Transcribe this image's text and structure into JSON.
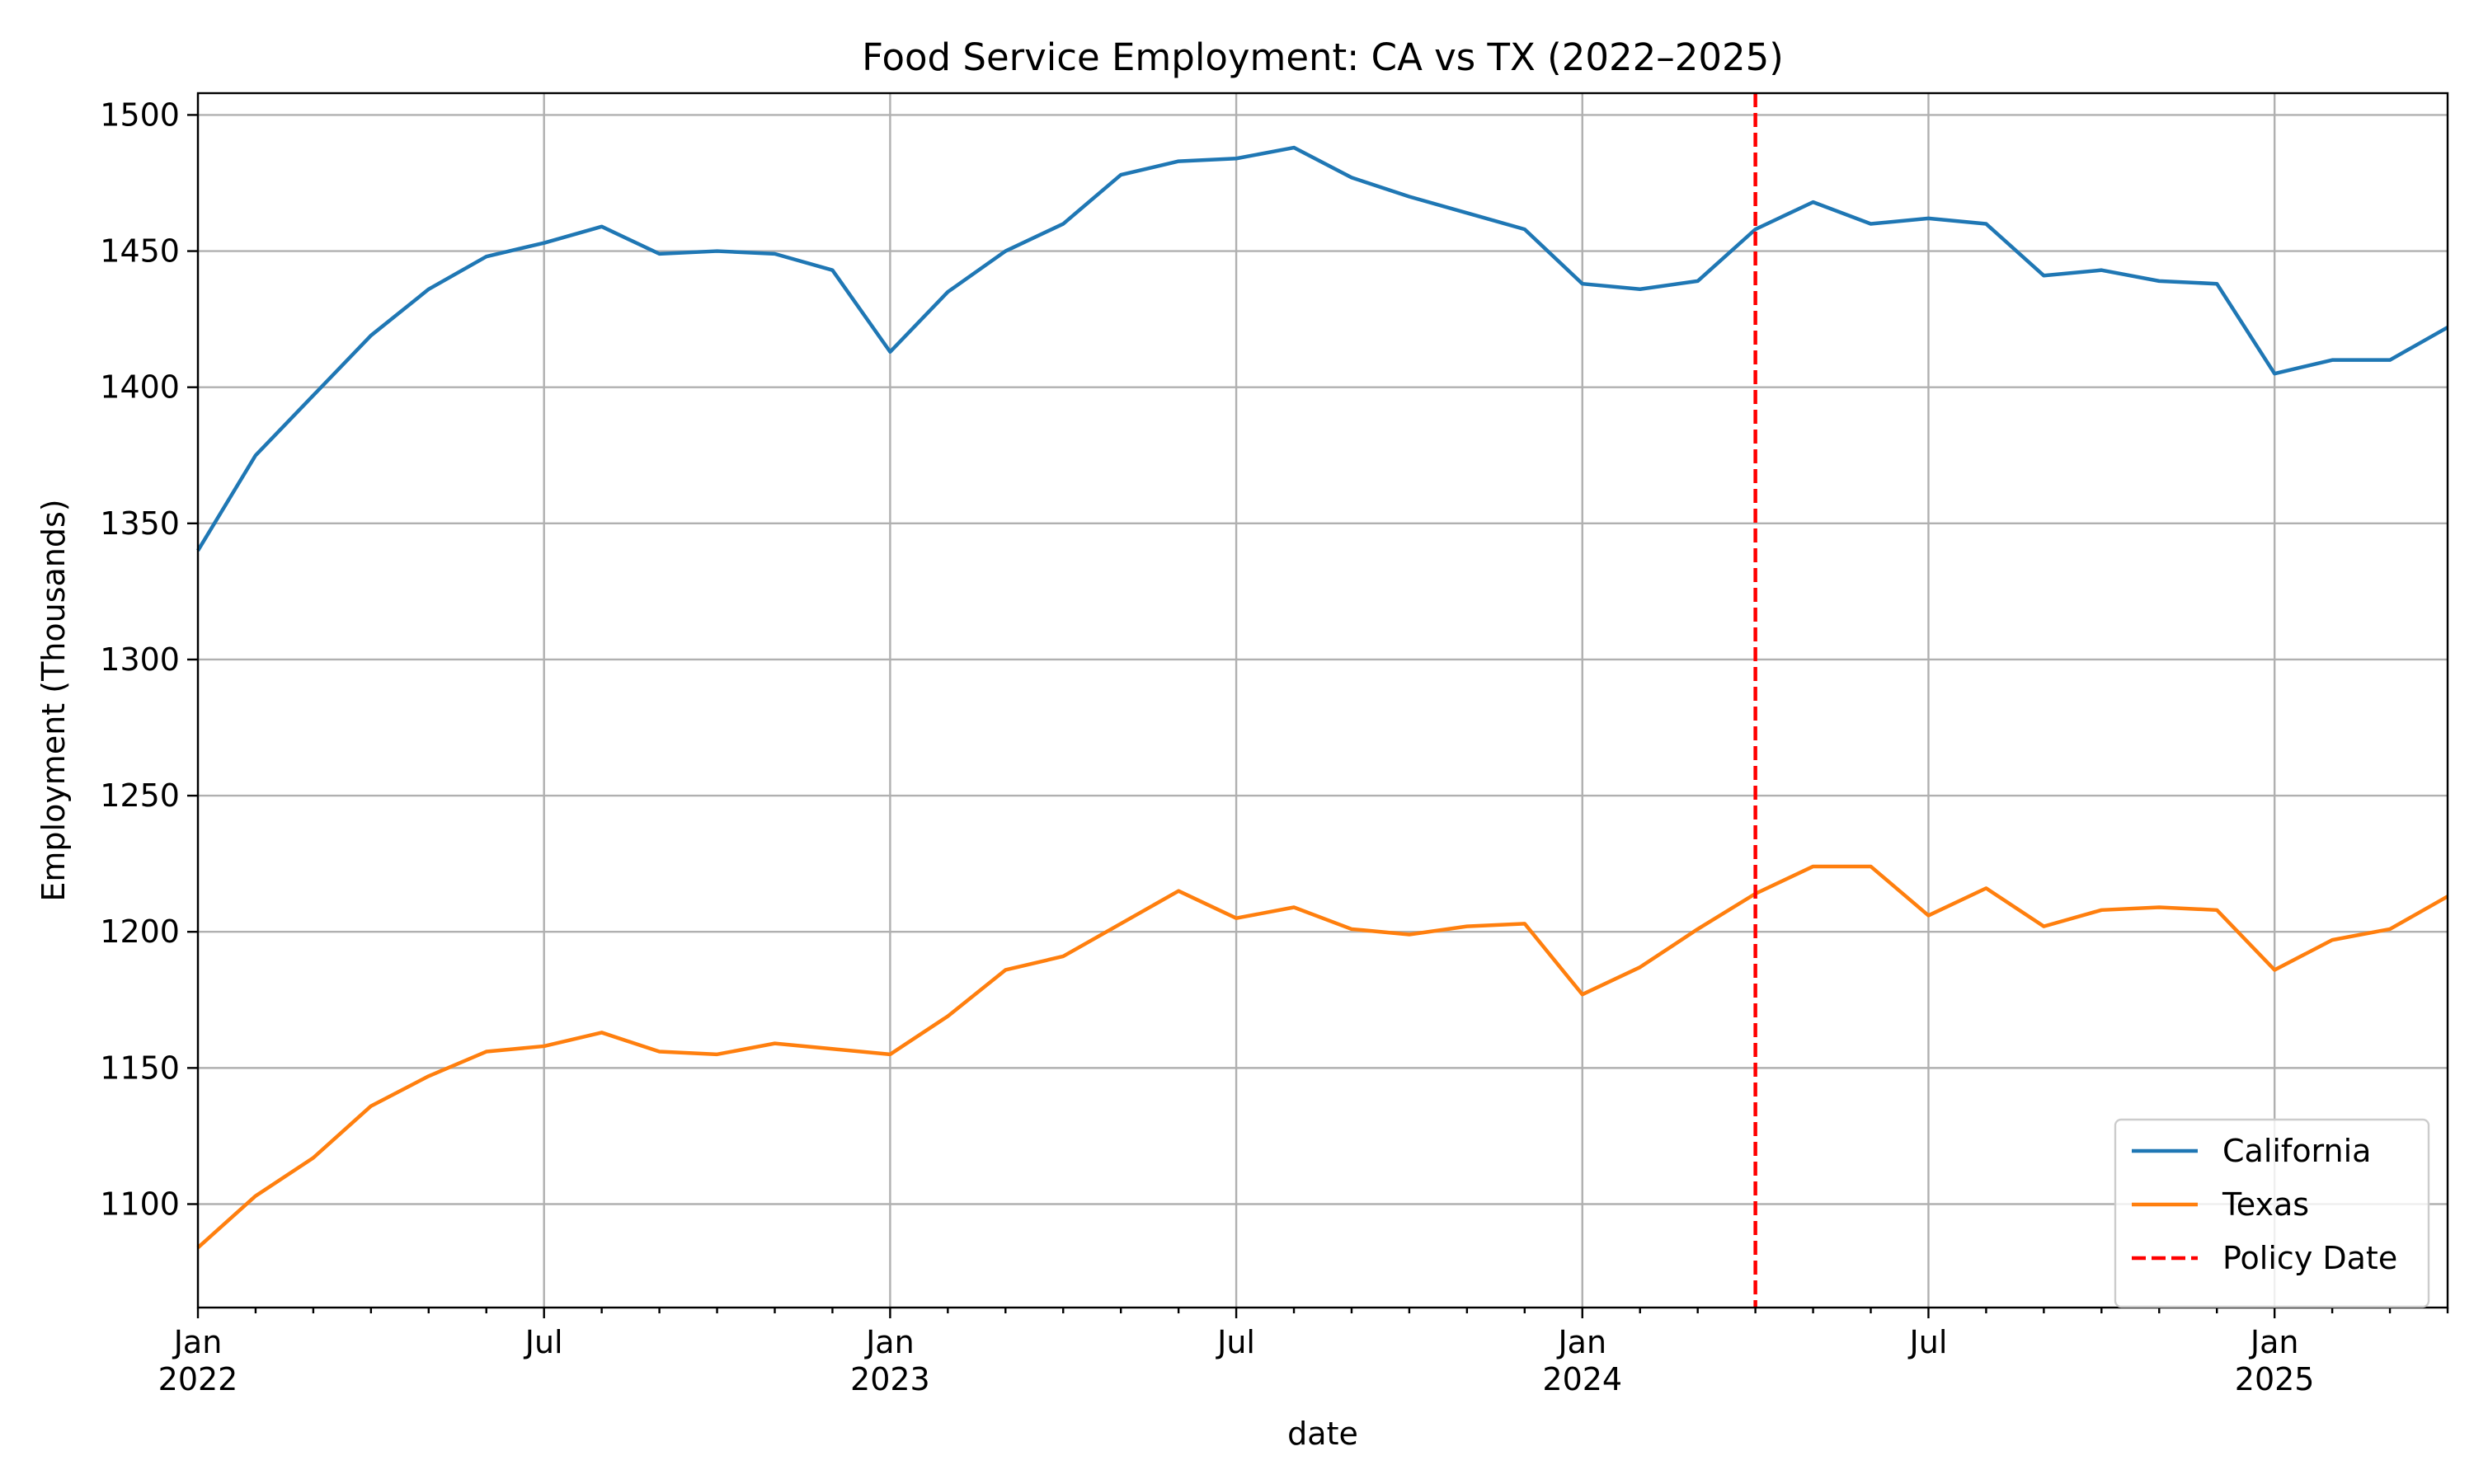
{
  "chart_data": {
    "type": "line",
    "title": "Food Service Employment: CA vs TX (2022–2025)",
    "xlabel": "date",
    "ylabel": "Employment (Thousands)",
    "x": [
      "2022-01",
      "2022-02",
      "2022-03",
      "2022-04",
      "2022-05",
      "2022-06",
      "2022-07",
      "2022-08",
      "2022-09",
      "2022-10",
      "2022-11",
      "2022-12",
      "2023-01",
      "2023-02",
      "2023-03",
      "2023-04",
      "2023-05",
      "2023-06",
      "2023-07",
      "2023-08",
      "2023-09",
      "2023-10",
      "2023-11",
      "2023-12",
      "2024-01",
      "2024-02",
      "2024-03",
      "2024-04",
      "2024-05",
      "2024-06",
      "2024-07",
      "2024-08",
      "2024-09",
      "2024-10",
      "2024-11",
      "2024-12",
      "2025-01",
      "2025-02",
      "2025-03",
      "2025-04"
    ],
    "xlim": [
      "2022-01",
      "2025-04"
    ],
    "ylim": [
      1062,
      1508
    ],
    "yticks": [
      1100,
      1150,
      1200,
      1250,
      1300,
      1350,
      1400,
      1450,
      1500
    ],
    "xticks_major": [
      {
        "date": "2022-01",
        "label": "Jan",
        "year": "2022"
      },
      {
        "date": "2022-07",
        "label": "Jul",
        "year": ""
      },
      {
        "date": "2023-01",
        "label": "Jan",
        "year": "2023"
      },
      {
        "date": "2023-07",
        "label": "Jul",
        "year": ""
      },
      {
        "date": "2024-01",
        "label": "Jan",
        "year": "2024"
      },
      {
        "date": "2024-07",
        "label": "Jul",
        "year": ""
      },
      {
        "date": "2025-01",
        "label": "Jan",
        "year": "2025"
      }
    ],
    "grid": true,
    "legend_position": "lower-right",
    "series": [
      {
        "name": "California",
        "color": "#1f77b4",
        "style": "solid",
        "values": [
          1340,
          1375,
          1397,
          1419,
          1436,
          1448,
          1453,
          1459,
          1449,
          1450,
          1449,
          1443,
          1413,
          1435,
          1450,
          1460,
          1478,
          1483,
          1484,
          1488,
          1477,
          1470,
          1464,
          1458,
          1438,
          1436,
          1439,
          1458,
          1468,
          1460,
          1462,
          1460,
          1441,
          1443,
          1439,
          1438,
          1405,
          1410,
          1410,
          1422
        ]
      },
      {
        "name": "Texas",
        "color": "#ff7f0e",
        "style": "solid",
        "values": [
          1084,
          1103,
          1117,
          1136,
          1147,
          1156,
          1158,
          1163,
          1156,
          1155,
          1159,
          1157,
          1155,
          1169,
          1186,
          1191,
          1203,
          1215,
          1205,
          1209,
          1201,
          1199,
          1202,
          1203,
          1177,
          1187,
          1201,
          1214,
          1224,
          1224,
          1206,
          1216,
          1202,
          1208,
          1209,
          1208,
          1186,
          1197,
          1201,
          1213
        ]
      }
    ],
    "vlines": [
      {
        "name": "Policy Date",
        "date": "2024-04",
        "color": "#ff0000",
        "style": "dashed"
      }
    ]
  }
}
